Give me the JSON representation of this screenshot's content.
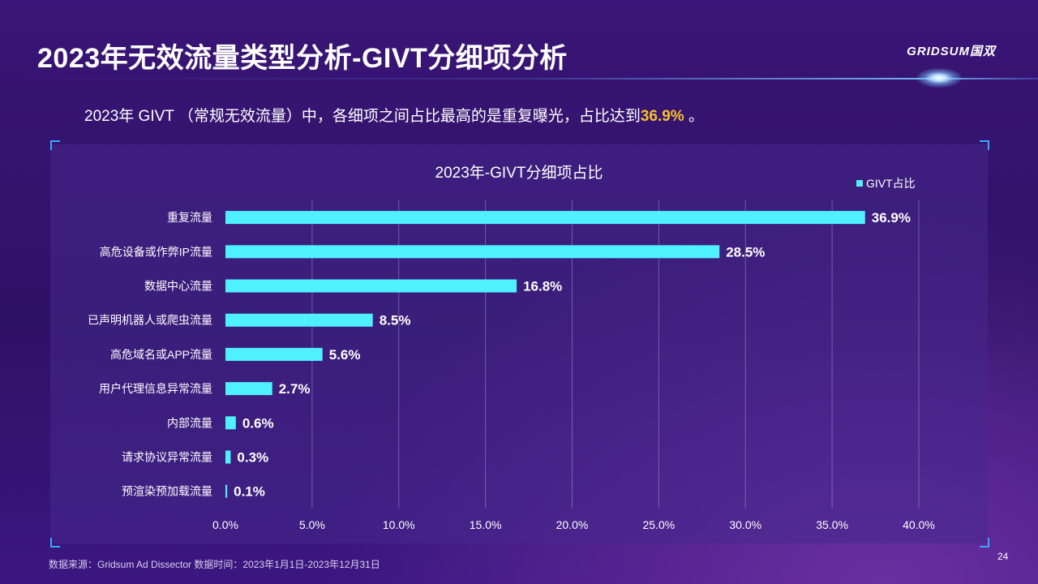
{
  "page": {
    "title": "2023年无效流量类型分析-GIVT分细项分析",
    "brand": "GRIDSUM国双",
    "subtitle_prefix": "2023年 GIVT （常规无效流量）中，各细项之间占比最高的是重复曝光，占比达到",
    "subtitle_highlight": "36.9%",
    "subtitle_suffix": " 。",
    "source": "数据来源：Gridsum Ad Dissector 数据时间：2023年1月1日-2023年12月31日",
    "page_number": "24"
  },
  "chart_data": {
    "type": "bar",
    "orientation": "horizontal",
    "title": "2023年-GIVT分细项占比",
    "categories": [
      "重复流量",
      "高危设备或作弊IP流量",
      "数据中心流量",
      "已声明机器人或爬虫流量",
      "高危域名或APP流量",
      "用户代理信息异常流量",
      "内部流量",
      "请求协议异常流量",
      "预渲染预加载流量"
    ],
    "series": [
      {
        "name": "GIVT占比",
        "values": [
          36.9,
          28.5,
          16.8,
          8.5,
          5.6,
          2.7,
          0.6,
          0.3,
          0.1
        ],
        "color": "#4ff0ff"
      }
    ],
    "value_labels": [
      "36.9%",
      "28.5%",
      "16.8%",
      "8.5%",
      "5.6%",
      "2.7%",
      "0.6%",
      "0.3%",
      "0.1%"
    ],
    "x_ticks": [
      "0.0%",
      "5.0%",
      "10.0%",
      "15.0%",
      "20.0%",
      "25.0%",
      "30.0%",
      "35.0%",
      "40.0%"
    ],
    "xlim": [
      0,
      40
    ],
    "grid": true,
    "legend_position": "top-right"
  }
}
